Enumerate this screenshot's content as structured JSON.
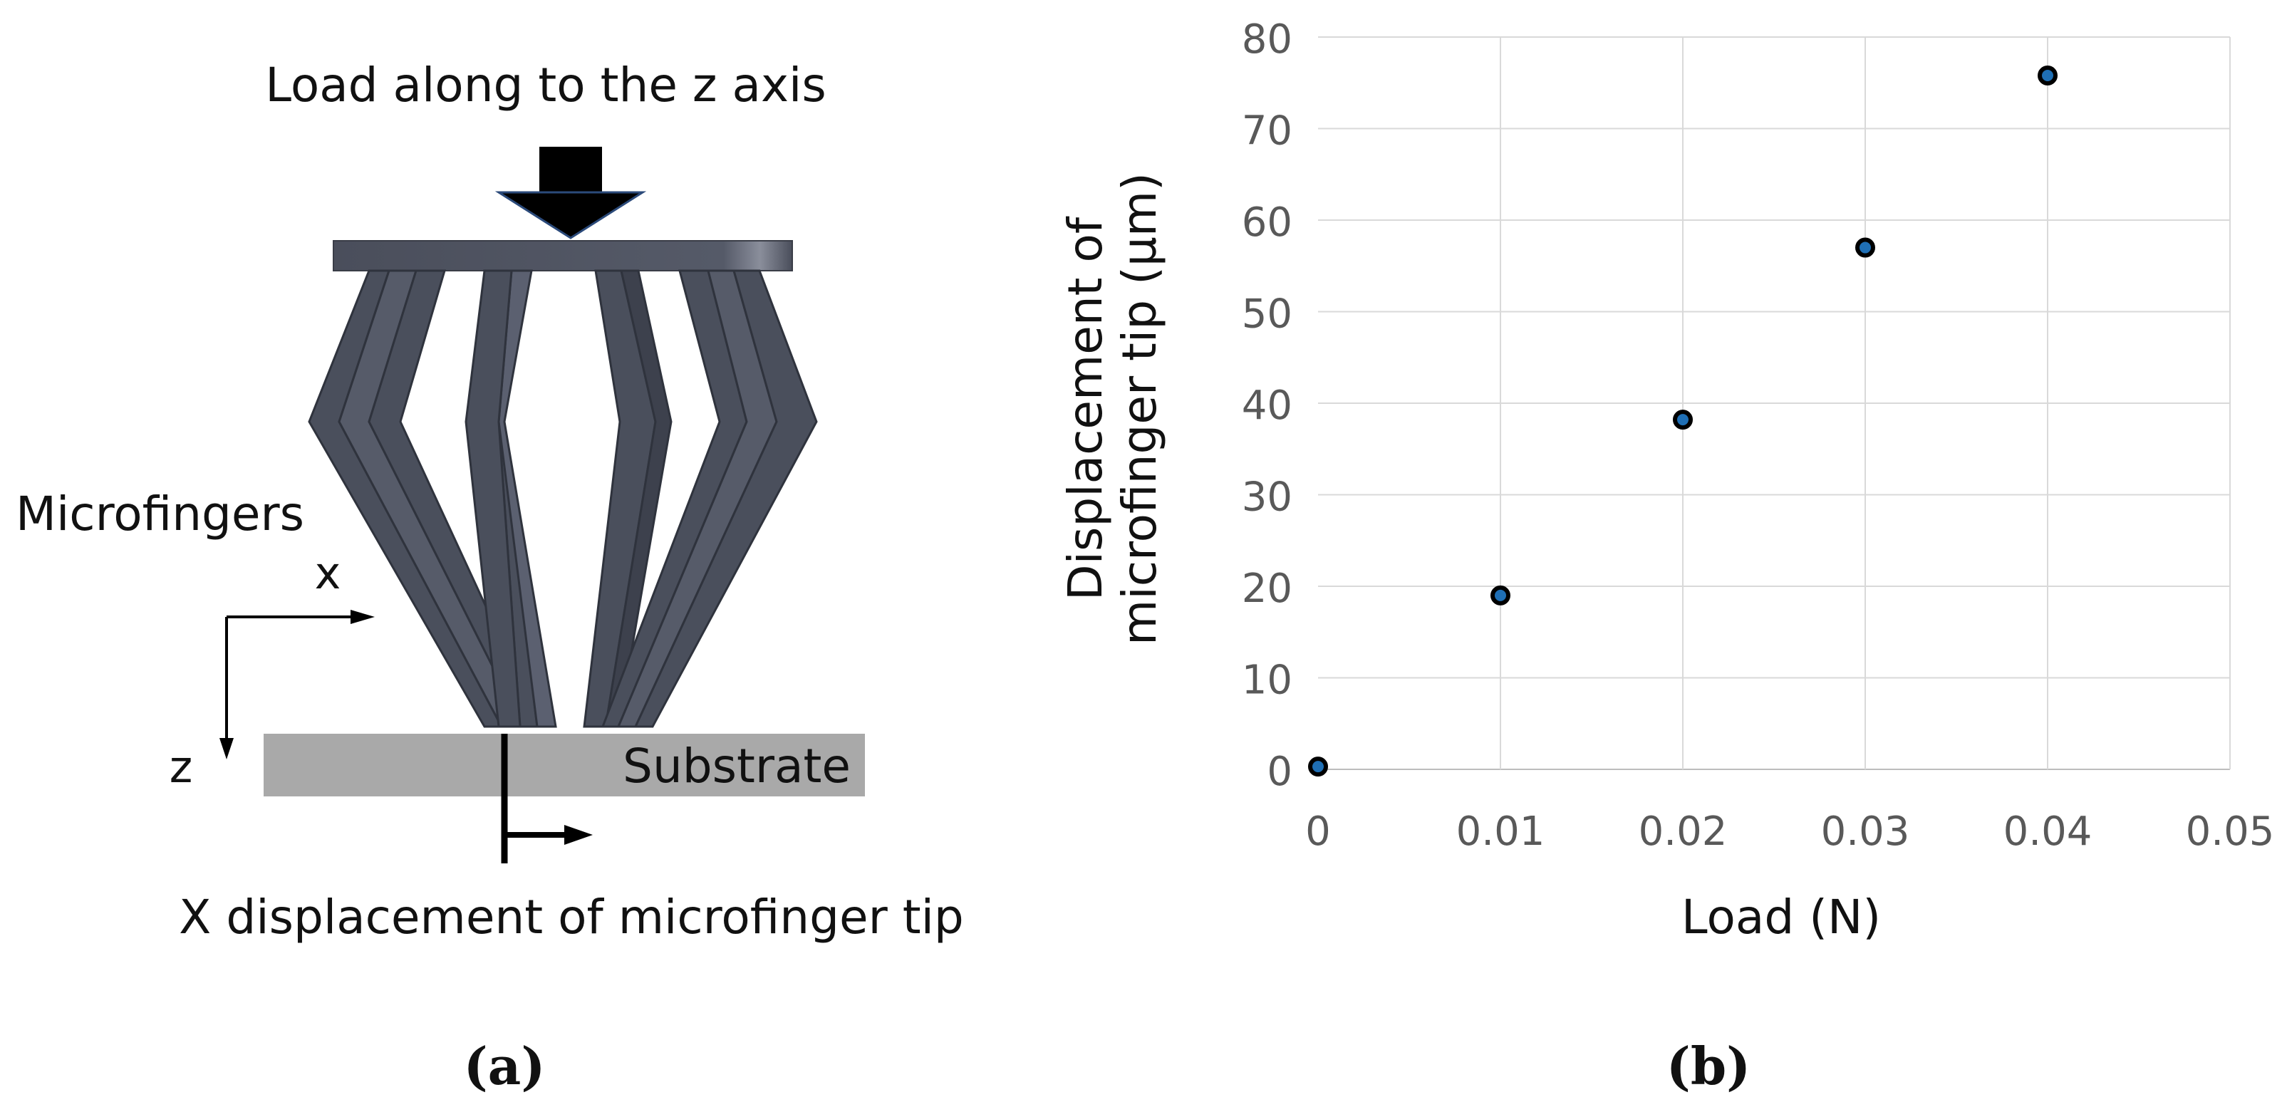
{
  "panel_a": {
    "label": "(a)",
    "load_label": "Load along to the z axis",
    "microfingers_label": "Microfingers",
    "axis_x_label": "x",
    "axis_z_label": "z",
    "substrate_label": "Substrate",
    "displacement_label": "X displacement of microfinger tip",
    "colors": {
      "finger": "#4a4f5c",
      "finger_edge": "#2f333d",
      "substrate": "#a9a9a9",
      "arrow": "#000000"
    }
  },
  "panel_b": {
    "label": "(b)",
    "chart_data": {
      "type": "scatter",
      "xlabel": "Load (N)",
      "ylabel_lines": [
        "Displacement of",
        "microfinger tip (µm)"
      ],
      "xlim": [
        0,
        0.05
      ],
      "ylim": [
        0,
        80
      ],
      "x_ticks": [
        "0",
        "0.01",
        "0.02",
        "0.03",
        "0.04",
        "0.05"
      ],
      "x_tick_values": [
        0,
        0.01,
        0.02,
        0.03,
        0.04,
        0.05
      ],
      "y_ticks": [
        "0",
        "10",
        "20",
        "30",
        "40",
        "50",
        "60",
        "70",
        "80"
      ],
      "y_tick_values": [
        0,
        10,
        20,
        30,
        40,
        50,
        60,
        70,
        80
      ],
      "grid": true,
      "series": [
        {
          "x": [
            0,
            0.01,
            0.02,
            0.03,
            0.04
          ],
          "y": [
            0.3,
            19,
            38.2,
            57,
            75.8
          ],
          "color": "#1f6fb5"
        }
      ]
    }
  }
}
